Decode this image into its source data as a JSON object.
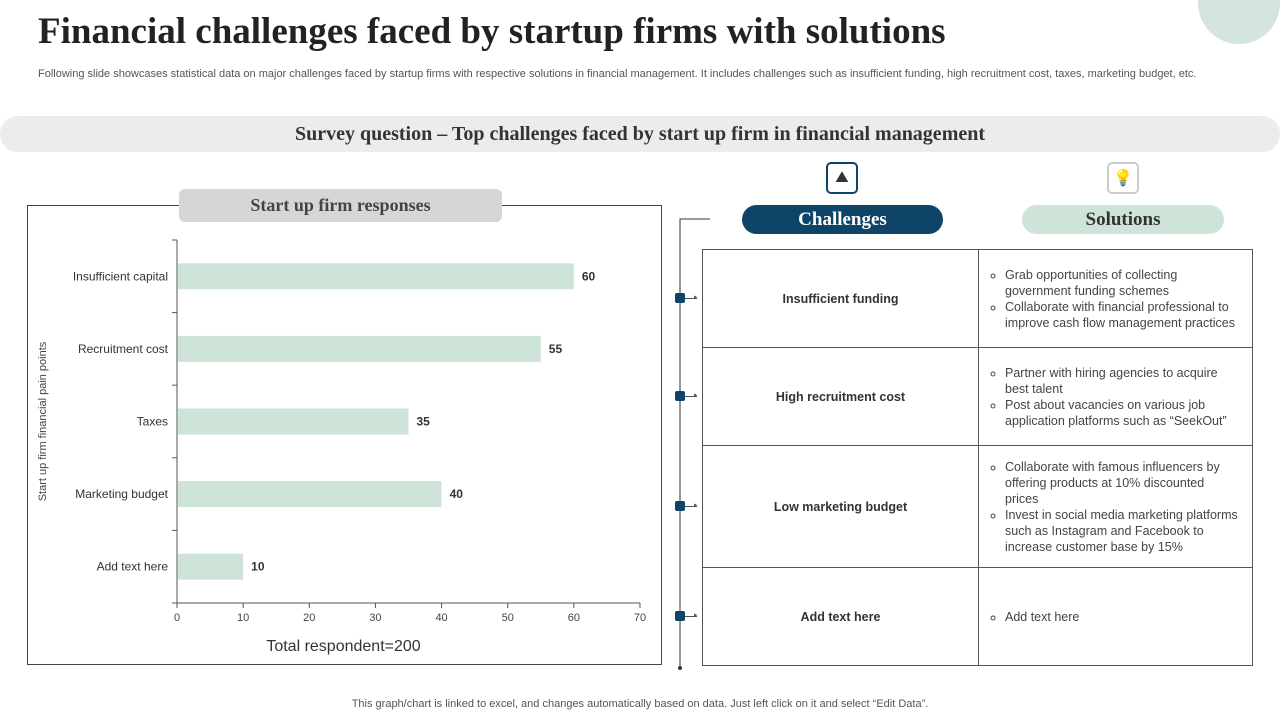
{
  "title": "Financial challenges faced by startup firms with solutions",
  "subtitle": "Following slide showcases statistical data on major challenges faced by startup firms with respective solutions in financial management. It includes challenges such as insufficient funding, high recruitment cost, taxes, marketing budget, etc.",
  "survey_question": "Survey question – Top challenges  faced by start up firm in financial management",
  "chart_header": "Start up firm responses",
  "chart_data": {
    "type": "bar",
    "orientation": "horizontal",
    "categories": [
      "Insufficient capital",
      "Recruitment cost",
      "Taxes",
      "Marketing budget",
      "Add text here"
    ],
    "values": [
      60,
      55,
      35,
      40,
      10
    ],
    "xlim": [
      0,
      70
    ],
    "xticks": [
      0,
      10,
      20,
      30,
      40,
      50,
      60,
      70
    ],
    "xlabel": "Total respondent=200",
    "ylabel": "Start up firm financial pain points",
    "bar_color": "#cfe4d9",
    "grid": false
  },
  "challenges_label": "Challenges",
  "solutions_label": "Solutions",
  "icons": {
    "challenges": "climber-mountain-icon",
    "solutions": "person-lightbulb-icon"
  },
  "rows": [
    {
      "challenge": "Insufficient funding",
      "solutions": [
        "Grab opportunities of collecting government funding schemes",
        "Collaborate with financial professional to improve cash flow management practices"
      ]
    },
    {
      "challenge": "High recruitment cost",
      "solutions": [
        "Partner with hiring agencies to acquire best talent",
        "Post about vacancies on various job application platforms such as “SeekOut”"
      ]
    },
    {
      "challenge": "Low marketing budget",
      "solutions": [
        "Collaborate with famous influencers by offering products at 10% discounted prices",
        "Invest in social media marketing platforms such as Instagram and Facebook to increase customer base by 15%"
      ]
    },
    {
      "challenge": "Add text here",
      "solutions": [
        "Add text here"
      ]
    }
  ],
  "footer": "This graph/chart is linked to excel, and changes automatically based on data. Just left click on it and select “Edit Data”.",
  "colors": {
    "navy": "#0e4467",
    "mint": "#cfe4d9",
    "gray": "#ececec"
  }
}
